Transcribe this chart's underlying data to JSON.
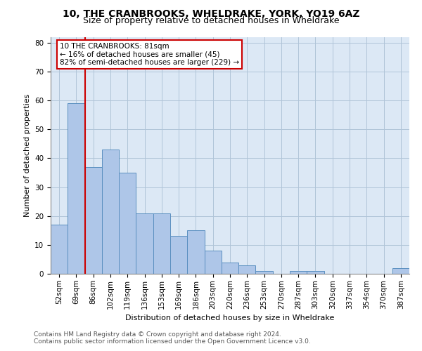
{
  "title1": "10, THE CRANBROOKS, WHELDRAKE, YORK, YO19 6AZ",
  "title2": "Size of property relative to detached houses in Wheldrake",
  "xlabel": "Distribution of detached houses by size in Wheldrake",
  "ylabel": "Number of detached properties",
  "categories": [
    "52sqm",
    "69sqm",
    "86sqm",
    "102sqm",
    "119sqm",
    "136sqm",
    "153sqm",
    "169sqm",
    "186sqm",
    "203sqm",
    "220sqm",
    "236sqm",
    "253sqm",
    "270sqm",
    "287sqm",
    "303sqm",
    "320sqm",
    "337sqm",
    "354sqm",
    "370sqm",
    "387sqm"
  ],
  "values": [
    17,
    59,
    37,
    43,
    35,
    21,
    21,
    13,
    15,
    8,
    4,
    3,
    1,
    0,
    1,
    1,
    0,
    0,
    0,
    0,
    2
  ],
  "bar_color": "#aec6e8",
  "bar_edge_color": "#5a8fc0",
  "annotation_title": "10 THE CRANBROOKS: 81sqm",
  "annotation_line1": "← 16% of detached houses are smaller (45)",
  "annotation_line2": "82% of semi-detached houses are larger (229) →",
  "annotation_box_color": "#cc0000",
  "vline_color": "#cc0000",
  "vline_x": 1.5,
  "grid_color": "#b0c4d8",
  "background_color": "#dce8f5",
  "footer1": "Contains HM Land Registry data © Crown copyright and database right 2024.",
  "footer2": "Contains public sector information licensed under the Open Government Licence v3.0.",
  "ylim": [
    0,
    82
  ],
  "yticks": [
    0,
    10,
    20,
    30,
    40,
    50,
    60,
    70,
    80
  ],
  "title1_fontsize": 10,
  "title2_fontsize": 9,
  "xlabel_fontsize": 8,
  "ylabel_fontsize": 8,
  "tick_fontsize": 7.5,
  "footer_fontsize": 6.5
}
